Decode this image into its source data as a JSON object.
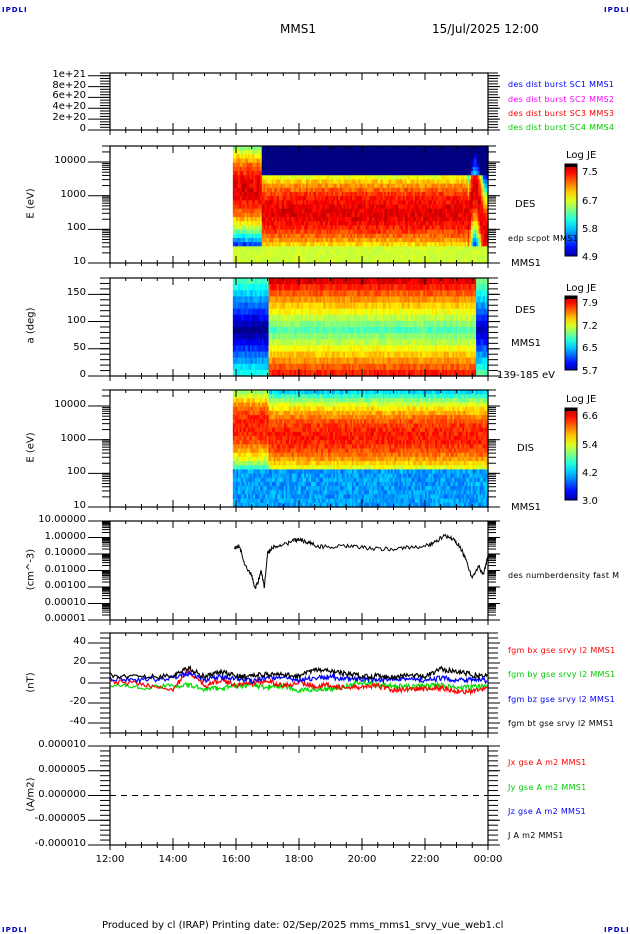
{
  "corner_label": "IPDLI",
  "header": {
    "spacecraft": "MMS1",
    "datetime": "15/Jul/2025 12:00"
  },
  "footer": {
    "text": "Produced by cl (IRAP)   Printing date: 02/Sep/2025   mms_mms1_srvy_vue_web1.cl"
  },
  "colors": {
    "blue": "#0000ff",
    "magenta": "#ff00ff",
    "red": "#ff0000",
    "green": "#00dd00",
    "black": "#000000",
    "ipdli": "#0000cc"
  },
  "chart_data": [
    {
      "type": "line",
      "panel": "burst-flags",
      "ylabel": "",
      "ylim": [
        0,
        1e+21
      ],
      "yticks": [
        "0",
        "2e+20",
        "4e+20",
        "6e+20",
        "8e+20",
        "1e+21"
      ],
      "legend": [
        {
          "label": "des dist burst SC1 MMS1",
          "color": "#0000ff"
        },
        {
          "label": "des dist burst SC2 MMS2",
          "color": "#ff00ff"
        },
        {
          "label": "des dist burst SC3 MMS3",
          "color": "#ff0000"
        },
        {
          "label": "des dist burst SC4 MMS4",
          "color": "#00dd00"
        }
      ],
      "reference_line": 0
    },
    {
      "type": "heatmap",
      "panel": "des-energy",
      "ylabel": "E (eV)",
      "yscale": "log",
      "ylim": [
        10,
        30000
      ],
      "yticks": [
        "10",
        "100",
        "1000",
        "10000"
      ],
      "data_start_hour": 15.9,
      "side_labels": [
        "DES",
        "edp scpot MMS1",
        "MMS1"
      ],
      "colorbar": {
        "title": "Log JE",
        "ticks": [
          "7.5",
          "6.7",
          "5.8",
          "4.9"
        ],
        "range": [
          4.9,
          7.8
        ]
      }
    },
    {
      "type": "heatmap",
      "panel": "des-pitch",
      "ylabel": "a (deg)",
      "ylim": [
        0,
        180
      ],
      "yticks": [
        "0",
        "50",
        "100",
        "150"
      ],
      "data_start_hour": 15.9,
      "side_labels": [
        "DES",
        "MMS1",
        "139-185 eV"
      ],
      "colorbar": {
        "title": "Log JE",
        "ticks": [
          "7.9",
          "7.2",
          "6.5",
          "5.7"
        ],
        "range": [
          5.7,
          8.1
        ]
      }
    },
    {
      "type": "heatmap",
      "panel": "dis-energy",
      "ylabel": "E (eV)",
      "yscale": "log",
      "ylim": [
        10,
        30000
      ],
      "yticks": [
        "10",
        "100",
        "1000",
        "10000"
      ],
      "data_start_hour": 15.9,
      "side_labels": [
        "DIS",
        "MMS1"
      ],
      "colorbar": {
        "title": "Log JE",
        "ticks": [
          "6.6",
          "5.4",
          "4.2",
          "3.0"
        ],
        "range": [
          3.0,
          6.9
        ]
      }
    },
    {
      "type": "line",
      "panel": "density",
      "ylabel": "(cm^-3)",
      "yscale": "log",
      "ylim": [
        1e-05,
        10
      ],
      "yticks": [
        "10.00000",
        "1.00000",
        "0.10000",
        "0.01000",
        "0.00100",
        "0.00010",
        "0.00001"
      ],
      "legend": [
        {
          "label": "des numberdensity fast M",
          "color": "#000000"
        }
      ],
      "series": [
        {
          "name": "density",
          "x": [
            15.95,
            16.1,
            16.3,
            16.5,
            16.6,
            16.7,
            16.8,
            16.9,
            17.0,
            17.2,
            17.5,
            17.8,
            18.0,
            18.3,
            18.6,
            19.0,
            19.5,
            20.0,
            20.5,
            21.0,
            21.5,
            22.0,
            22.3,
            22.6,
            22.9,
            23.1,
            23.3,
            23.5,
            23.7,
            23.85,
            24.0
          ],
          "y": [
            0.2,
            0.3,
            0.02,
            0.005,
            0.0008,
            0.002,
            0.01,
            0.001,
            0.1,
            0.3,
            0.35,
            0.6,
            0.8,
            0.5,
            0.3,
            0.25,
            0.3,
            0.25,
            0.2,
            0.2,
            0.25,
            0.3,
            0.5,
            1.2,
            0.8,
            0.3,
            0.05,
            0.003,
            0.02,
            0.005,
            0.08
          ]
        }
      ]
    },
    {
      "type": "line",
      "panel": "magnetic-field",
      "ylabel": "(nT)",
      "ylim": [
        -50,
        50
      ],
      "yticks": [
        "40",
        "20",
        "0",
        "-20",
        "-40"
      ],
      "legend": [
        {
          "label": "fgm bx gse srvy l2 MMS1",
          "color": "#ff0000"
        },
        {
          "label": "fgm by gse srvy l2 MMS1",
          "color": "#00dd00"
        },
        {
          "label": "fgm bz gse srvy l2 MMS1",
          "color": "#0000ff"
        },
        {
          "label": "fgm bt gse srvy l2 MMS1",
          "color": "#000000"
        }
      ],
      "series": [
        {
          "name": "bt",
          "x": [
            12,
            13,
            14,
            14.5,
            15,
            15.5,
            16,
            16.5,
            17,
            17.5,
            18,
            18.5,
            19,
            19.5,
            20,
            20.5,
            21,
            21.5,
            22,
            22.5,
            23,
            23.5,
            24
          ],
          "y": [
            8,
            6,
            7,
            15,
            6,
            11,
            7,
            7,
            9,
            8,
            7,
            13,
            12,
            9,
            7,
            7,
            6,
            8,
            6,
            14,
            12,
            8,
            7
          ]
        },
        {
          "name": "bz",
          "x": [
            12,
            13,
            14,
            14.5,
            15,
            15.5,
            16,
            16.5,
            17,
            17.5,
            18,
            18.5,
            19,
            19.5,
            20,
            20.5,
            21,
            21.5,
            22,
            22.5,
            23,
            23.5,
            24
          ],
          "y": [
            4,
            3,
            5,
            10,
            3,
            6,
            5,
            2,
            6,
            5,
            3,
            5,
            6,
            4,
            4,
            2,
            5,
            4,
            2,
            5,
            3,
            4,
            2
          ]
        },
        {
          "name": "bx",
          "x": [
            12,
            13,
            14,
            14.5,
            15,
            15.5,
            16,
            16.5,
            17,
            17.5,
            18,
            18.5,
            19,
            19.5,
            20,
            20.5,
            21,
            21.5,
            22,
            22.5,
            23,
            23.5,
            24
          ],
          "y": [
            2,
            -1,
            -6,
            12,
            -3,
            3,
            -2,
            0,
            2,
            -3,
            1,
            -3,
            -2,
            -5,
            -4,
            -3,
            -7,
            -6,
            -6,
            -5,
            -8,
            -9,
            -4
          ]
        },
        {
          "name": "by",
          "x": [
            12,
            13,
            14,
            14.5,
            15,
            15.5,
            16,
            16.5,
            17,
            17.5,
            18,
            18.5,
            19,
            19.5,
            20,
            20.5,
            21,
            21.5,
            22,
            22.5,
            23,
            23.5,
            24
          ],
          "y": [
            -1,
            -5,
            -3,
            -2,
            -6,
            -5,
            -3,
            -2,
            -4,
            -3,
            -8,
            -6,
            -6,
            -3,
            1,
            -2,
            -3,
            -4,
            -3,
            -2,
            -5,
            -4,
            -3
          ]
        }
      ]
    },
    {
      "type": "line",
      "panel": "current-density",
      "ylabel": "(A/m2)",
      "ylim": [
        -1e-05,
        1e-05
      ],
      "yticks": [
        "0.000010",
        "0.000005",
        "0.000000",
        "-0.000005",
        "-0.000010"
      ],
      "legend": [
        {
          "label": "Jx gse A m2 MMS1",
          "color": "#ff0000"
        },
        {
          "label": "Jy gse A m2 MMS1",
          "color": "#00dd00"
        },
        {
          "label": "Jz gse A m2 MMS1",
          "color": "#0000ff"
        },
        {
          "label": "J A m2 MMS1",
          "color": "#000000"
        }
      ],
      "reference_line": 0
    }
  ],
  "xaxis": {
    "xlim": [
      12,
      24
    ],
    "ticks": [
      "12:00",
      "14:00",
      "16:00",
      "18:00",
      "20:00",
      "22:00",
      "00:00"
    ]
  }
}
